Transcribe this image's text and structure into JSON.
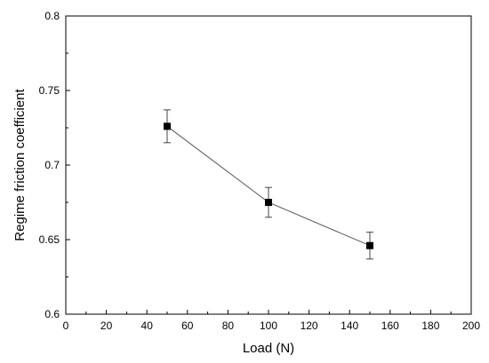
{
  "chart_data": {
    "type": "line",
    "title": "",
    "xlabel": "Load (N)",
    "ylabel": "Regime friction coefficient",
    "xlim": [
      0,
      200
    ],
    "ylim": [
      0.6,
      0.8
    ],
    "x_ticks": [
      0,
      20,
      40,
      60,
      80,
      100,
      120,
      140,
      160,
      180,
      200
    ],
    "x_tick_labels": [
      "0",
      "20",
      "40",
      "60",
      "80",
      "100",
      "120",
      "140",
      "160",
      "180",
      "200"
    ],
    "y_ticks": [
      0.6,
      0.65,
      0.7,
      0.75,
      0.8
    ],
    "y_tick_labels": [
      "0.6",
      "0.65",
      "0.7",
      "0.75",
      "0.8"
    ],
    "grid": false,
    "legend": "none",
    "marker": "square",
    "series": [
      {
        "x": [
          50,
          100,
          150
        ],
        "y": [
          0.726,
          0.675,
          0.646
        ],
        "error": [
          0.011,
          0.01,
          0.009
        ],
        "color": "#000000",
        "line_color": "#555555"
      }
    ]
  }
}
